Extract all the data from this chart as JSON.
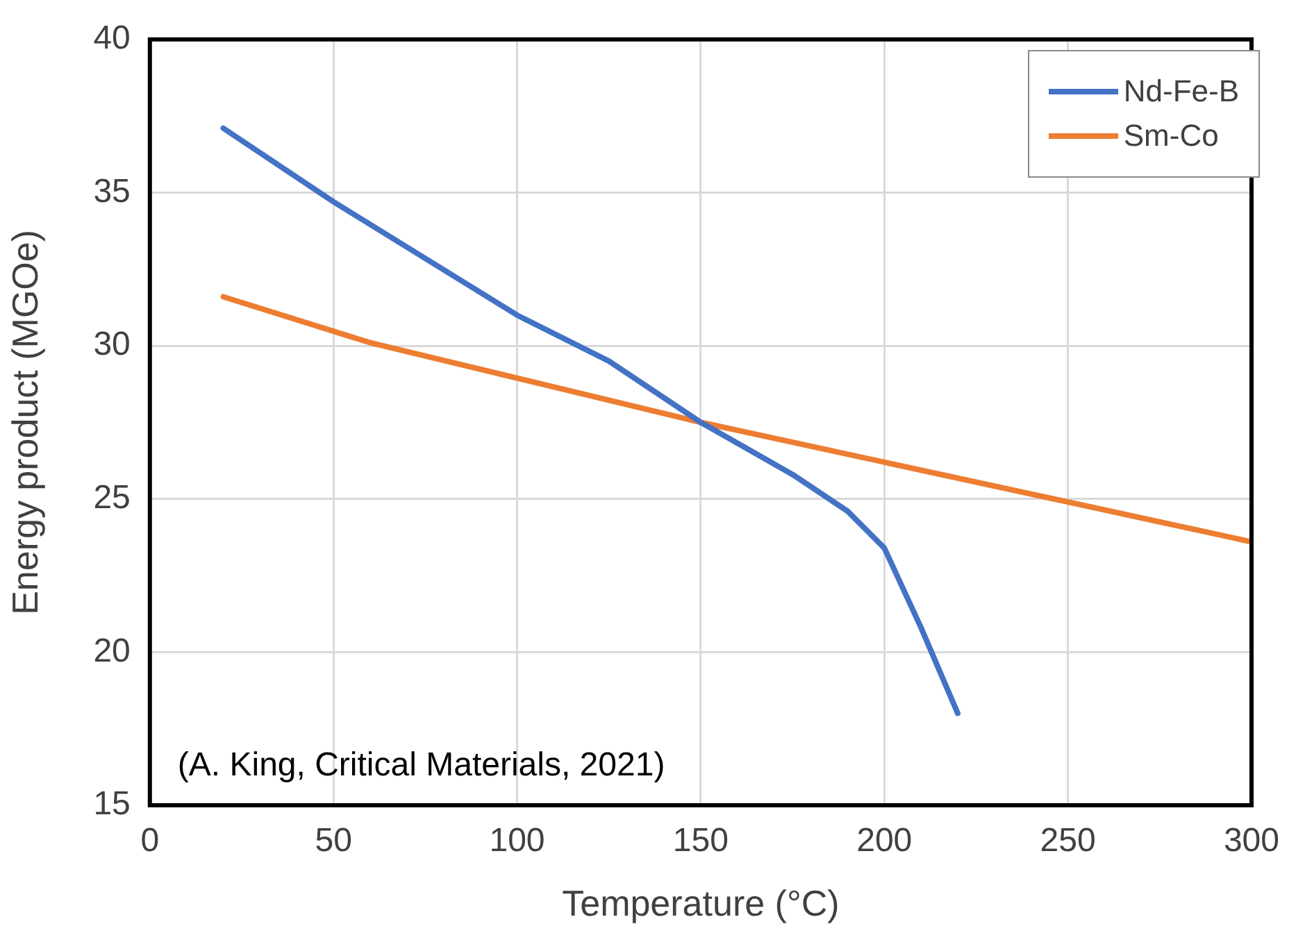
{
  "chart_data": {
    "type": "line",
    "xlabel": "Temperature (°C)",
    "ylabel": "Energy product (MGOe)",
    "xlim": [
      0,
      300
    ],
    "xticks": [
      0,
      50,
      100,
      150,
      200,
      250,
      300
    ],
    "ylim": [
      15,
      40
    ],
    "yticks": [
      15,
      20,
      25,
      30,
      35,
      40
    ],
    "grid": true,
    "legend": "top right",
    "marker": "none",
    "line_style": "solid",
    "annotations": [
      "(A. King, Critical Materials, 2021)"
    ],
    "series": [
      {
        "name": "Nd-Fe-B",
        "color": "#4472c4",
        "x": [
          20,
          50,
          100,
          125,
          150,
          175,
          190,
          200,
          210,
          220
        ],
        "values": [
          37.1,
          34.7,
          31.0,
          29.5,
          27.5,
          25.8,
          24.6,
          23.4,
          20.8,
          18.0
        ]
      },
      {
        "name": "Sm-Co",
        "color": "#ed7d31",
        "x": [
          20,
          60,
          150,
          300
        ],
        "values": [
          31.6,
          30.1,
          27.5,
          23.6
        ]
      }
    ]
  }
}
